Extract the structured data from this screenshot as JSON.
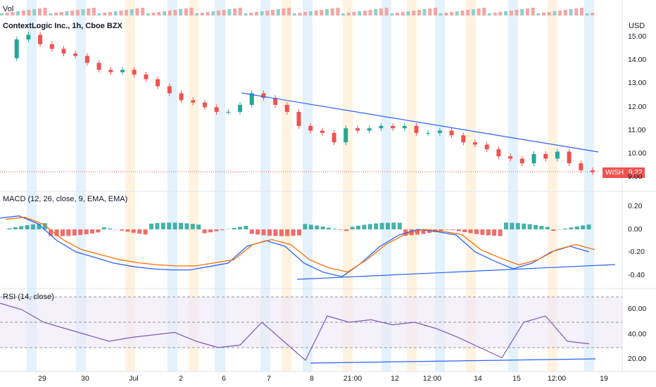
{
  "volume": {
    "label": "Vol"
  },
  "main": {
    "title": "ContextLogic Inc., 1h, Cboe BZX",
    "currency": "USD",
    "symbol": "WISH",
    "last_price": "9.22",
    "y_ticks": [
      "15.00",
      "14.00",
      "13.00",
      "12.00",
      "11.00",
      "10.00",
      "9.00"
    ]
  },
  "macd": {
    "title": "MACD (12, 26, close, 9, EMA, EMA)",
    "y_ticks": [
      "0.20",
      "0.00",
      "-0.20",
      "-0.40"
    ]
  },
  "rsi": {
    "title": "RSI (14, close)",
    "y_ticks": [
      "60.00",
      "40.00",
      "20.00"
    ]
  },
  "x_ticks": [
    "29",
    "30",
    "Jul",
    "2",
    "6",
    "7",
    "8",
    "21:00",
    "12",
    "12:00",
    "14",
    "15",
    "12:00",
    "19"
  ],
  "colors": {
    "up": "#26a69a",
    "down": "#ef5350",
    "macd": "#2962ff",
    "signal": "#ff6d00",
    "rsi": "#7e57c2",
    "trend": "#2962ff"
  },
  "chart_data": {
    "type": "candlestick",
    "price_approx": [
      14.1,
      14.9,
      15.1,
      14.7,
      14.5,
      14.3,
      14.2,
      13.9,
      13.6,
      13.5,
      13.6,
      13.4,
      13.2,
      12.9,
      12.6,
      12.3,
      12.2,
      12.0,
      11.8,
      11.8,
      12.1,
      12.6,
      12.4,
      12.1,
      11.8,
      11.2,
      11.0,
      10.9,
      10.5,
      11.1,
      11.0,
      11.1,
      11.2,
      11.1,
      11.2,
      10.9,
      10.9,
      11.0,
      10.8,
      10.5,
      10.4,
      10.2,
      9.9,
      9.8,
      9.6,
      10.0,
      9.8,
      10.1,
      9.6,
      9.3,
      9.22
    ],
    "macd_approx": [
      0.1,
      0.12,
      0.05,
      -0.1,
      -0.2,
      -0.25,
      -0.3,
      -0.33,
      -0.35,
      -0.36,
      -0.36,
      -0.33,
      -0.3,
      -0.15,
      -0.1,
      -0.15,
      -0.3,
      -0.38,
      -0.42,
      -0.3,
      -0.15,
      -0.05,
      0.0,
      -0.02,
      -0.05,
      -0.2,
      -0.28,
      -0.35,
      -0.3,
      -0.2,
      -0.15,
      -0.2
    ],
    "rsi_approx": [
      65,
      60,
      50,
      45,
      40,
      35,
      38,
      40,
      42,
      35,
      30,
      32,
      50,
      35,
      20,
      55,
      50,
      52,
      48,
      50,
      45,
      38,
      30,
      22,
      50,
      55,
      35,
      33
    ]
  }
}
